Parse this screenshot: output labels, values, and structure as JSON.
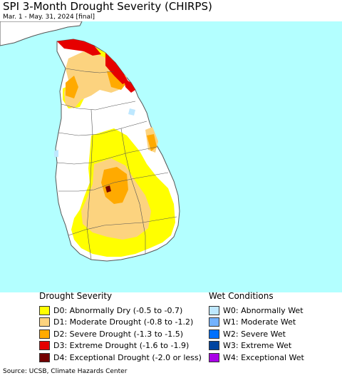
{
  "header": {
    "title": "SPI 3-Month Drought Severity (CHIRPS)",
    "subtitle": "Mar. 1 - May. 31, 2024 [final]"
  },
  "map": {
    "ocean_color": "#b3ffff",
    "land_color": "#ffffff",
    "boundary_color": "#555555"
  },
  "legend": {
    "drought": {
      "heading": "Drought Severity",
      "items": [
        {
          "label": "D0: Abnormally Dry (-0.5 to -0.7)",
          "color": "#ffff00"
        },
        {
          "label": "D1: Moderate Drought (-0.8 to -1.2)",
          "color": "#fcd37f"
        },
        {
          "label": "D2: Severe Drought (-1.3 to -1.5)",
          "color": "#ffaa00"
        },
        {
          "label": "D3: Extreme Drought (-1.6 to -1.9)",
          "color": "#e60000"
        },
        {
          "label": "D4: Exceptional Drought (-2.0 or less)",
          "color": "#730000"
        }
      ]
    },
    "wet": {
      "heading": "Wet Conditions",
      "items": [
        {
          "label": "W0: Abnormally Wet",
          "color": "#bee8ff"
        },
        {
          "label": "W1: Moderate Wet",
          "color": "#73b2ff"
        },
        {
          "label": "W2: Severe Wet",
          "color": "#0070ff"
        },
        {
          "label": "W3: Extreme Wet",
          "color": "#0044a0"
        },
        {
          "label": "W4: Exceptional Wet",
          "color": "#a900e6"
        }
      ]
    }
  },
  "footer": {
    "source": "Source: UCSB, Climate Hazards Center"
  }
}
